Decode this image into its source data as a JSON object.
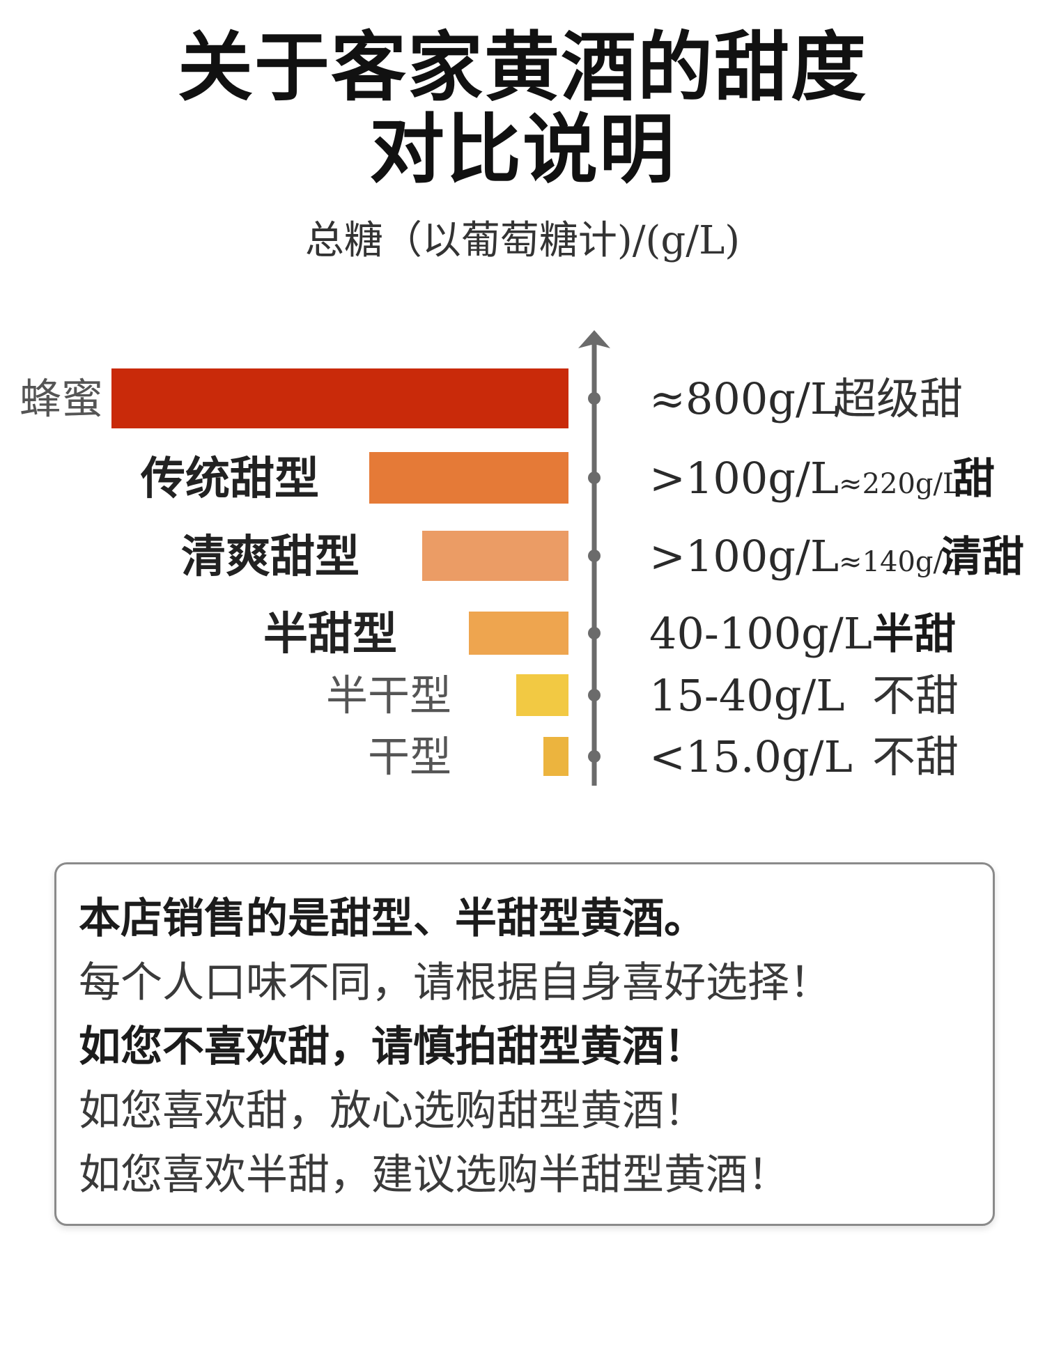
{
  "header": {
    "title_line1": "关于客家黄酒的甜度",
    "title_line2": "对比说明",
    "subtitle": "总糖（以葡萄糖计)/(g/L)"
  },
  "colors": {
    "axis": "#6b6b6b",
    "text_dark": "#1a1a1a",
    "text_light": "#444444"
  },
  "chart_data": {
    "type": "bar",
    "orientation": "horizontal",
    "title": "总糖（以葡萄糖计)/(g/L)",
    "categories": [
      "蜂蜜",
      "传统甜型",
      "清爽甜型",
      "半甜型",
      "半干型",
      "干型"
    ],
    "bars": [
      {
        "category": "蜂蜜",
        "value": 800,
        "color": "#c92a0a",
        "label_bold": false,
        "range_text": "≈800g/L",
        "range_small": "",
        "sweet_text": "超级甜",
        "sweet_bold": false
      },
      {
        "category": "传统甜型",
        "value": 220,
        "color": "#e57a37",
        "label_bold": true,
        "range_text": ">100g/L",
        "range_small": "≈220g/L",
        "sweet_text": "甜",
        "sweet_bold": true
      },
      {
        "category": "清爽甜型",
        "value": 140,
        "color": "#eb9c65",
        "label_bold": true,
        "range_text": ">100g/L",
        "range_small": "≈140g/L",
        "sweet_text": "清甜",
        "sweet_bold": true
      },
      {
        "category": "半甜型",
        "value": 100,
        "color": "#eea54f",
        "label_bold": true,
        "range_text": "40-100g/L",
        "range_small": "",
        "sweet_text": "半甜",
        "sweet_bold": true
      },
      {
        "category": "半干型",
        "value": 40,
        "color": "#f2c943",
        "label_bold": false,
        "range_text": "15-40g/L",
        "range_small": "",
        "sweet_text": "不甜",
        "sweet_bold": false
      },
      {
        "category": "干型",
        "value": 15,
        "color": "#ecb43e",
        "label_bold": false,
        "range_text": "<15.0g/L",
        "range_small": "",
        "sweet_text": "不甜",
        "sweet_bold": false
      }
    ]
  },
  "notes": {
    "line1": "本店销售的是甜型、半甜型黄酒。",
    "line2": "每个人口味不同，请根据自身喜好选择！",
    "line3": "如您不喜欢甜，请慎拍甜型黄酒！",
    "line4": "如您喜欢甜，放心选购甜型黄酒！",
    "line5": "如您喜欢半甜，建议选购半甜型黄酒！"
  }
}
